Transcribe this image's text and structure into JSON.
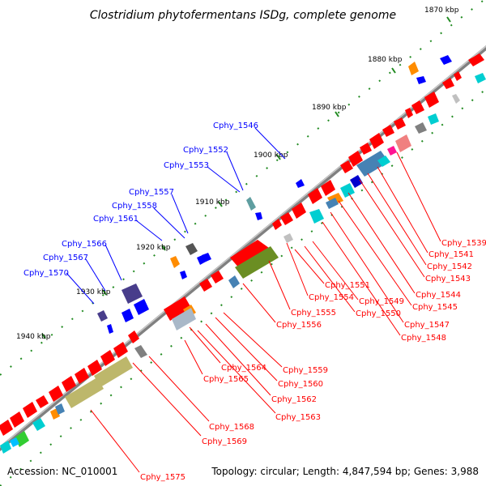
{
  "title": "Clostridium phytofermentans ISDg, complete genome",
  "footer": {
    "accession": "Accession: NC_010001",
    "summary": "Topology: circular; Length: 4,847,594 bp; Genes: 3,988"
  },
  "kbp_ticks": [
    "1870 kbp",
    "1880 kbp",
    "1890 kbp",
    "1900 kbp",
    "1910 kbp",
    "1920 kbp",
    "1930 kbp",
    "1940 kbp"
  ],
  "labels_blue": [
    "Cphy_1546",
    "Cphy_1552",
    "Cphy_1553",
    "Cphy_1557",
    "Cphy_1558",
    "Cphy_1561",
    "Cphy_1566",
    "Cphy_1567",
    "Cphy_1570"
  ],
  "labels_red": [
    "Cphy_1539",
    "Cphy_1541",
    "Cphy_1542",
    "Cphy_1543",
    "Cphy_1544",
    "Cphy_1545",
    "Cphy_1547",
    "Cphy_1548",
    "Cphy_1549",
    "Cphy_1550",
    "Cphy_1551",
    "Cphy_1554",
    "Cphy_1555",
    "Cphy_1556",
    "Cphy_1559",
    "Cphy_1560",
    "Cphy_1562",
    "Cphy_1563",
    "Cphy_1564",
    "Cphy_1565",
    "Cphy_1568",
    "Cphy_1569",
    "Cphy_1575"
  ],
  "colors": {
    "forward_label": "#0000ff",
    "reverse_label": "#ff0000",
    "backbone": "#808080",
    "tick": "#228b22"
  }
}
